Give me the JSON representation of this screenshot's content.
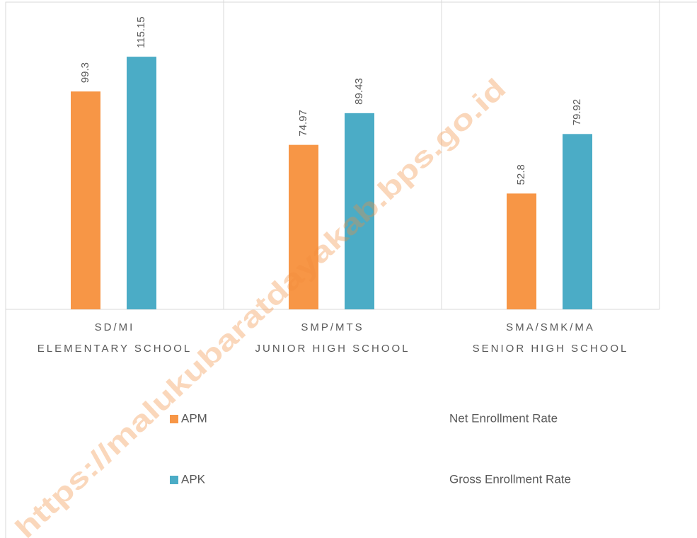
{
  "chart_data": {
    "type": "bar",
    "categories": [
      [
        "SD/MI",
        "ELEMENTARY SCHOOL"
      ],
      [
        "SMP/MTS",
        "JUNIOR HIGH SCHOOL"
      ],
      [
        "SMA/SMK/MA",
        "SENIOR HIGH SCHOOL"
      ]
    ],
    "series": [
      {
        "name": "APM",
        "description": "Net Enrollment Rate",
        "color": "#f79646",
        "values": [
          99.3,
          74.97,
          52.8
        ]
      },
      {
        "name": "APK",
        "description": "Gross Enrollment Rate",
        "color": "#4bacc6",
        "values": [
          115.15,
          89.43,
          79.92
        ]
      }
    ],
    "ylim": [
      0,
      141
    ],
    "watermark": "https://malukubaratdayakab.bps.go.id"
  }
}
